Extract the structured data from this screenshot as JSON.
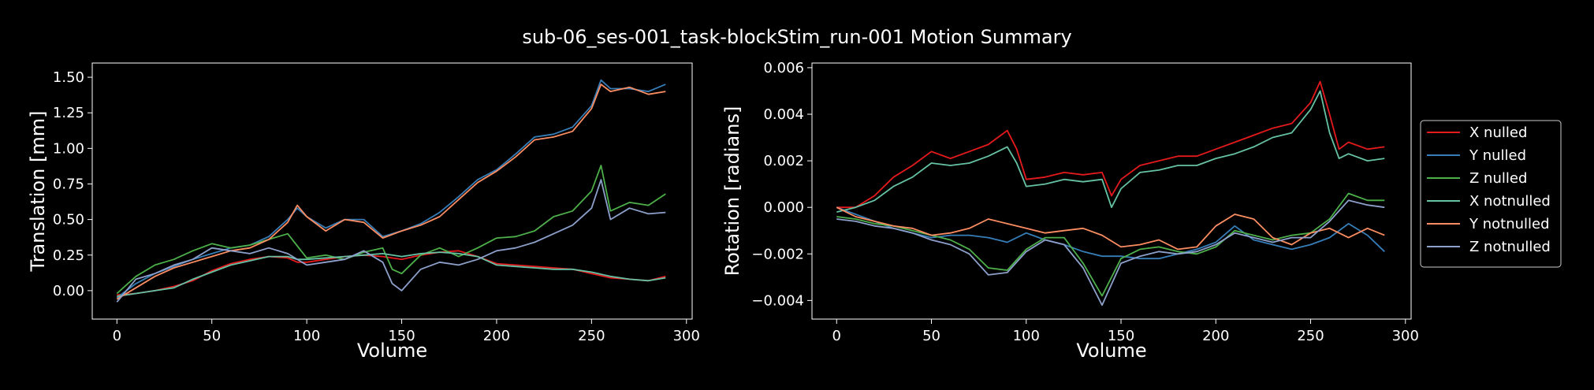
{
  "title": "sub-06_ses-001_task-blockStim_run-001 Motion Summary",
  "colors": {
    "background": "#000000",
    "foreground": "#ffffff",
    "X nulled": "#e41a1c",
    "Y nulled": "#377eb8",
    "Z nulled": "#4daf4a",
    "X notnulled": "#66c2a5",
    "Y notnulled": "#fc8d62",
    "Z notnulled": "#8da0cb"
  },
  "legend": {
    "placement": "right, outside plots",
    "entries": [
      "X nulled",
      "Y nulled",
      "Z nulled",
      "X notnulled",
      "Y notnulled",
      "Z notnulled"
    ]
  },
  "chart_data": [
    {
      "type": "line",
      "xlabel": "Volume",
      "ylabel": "Translation [mm]",
      "xlim": [
        -13,
        303
      ],
      "ylim": [
        -0.2,
        1.6
      ],
      "xticks": [
        0,
        50,
        100,
        150,
        200,
        250,
        300
      ],
      "xtick_labels": [
        "0",
        "50",
        "100",
        "150",
        "200",
        "250",
        "300"
      ],
      "yticks": [
        0.0,
        0.25,
        0.5,
        0.75,
        1.0,
        1.25,
        1.5
      ],
      "ytick_labels": [
        "0.00",
        "0.25",
        "0.50",
        "0.75",
        "1.00",
        "1.25",
        "1.50"
      ],
      "grid": false,
      "series": [
        {
          "name": "X nulled",
          "x": [
            0,
            10,
            20,
            30,
            40,
            50,
            60,
            70,
            80,
            90,
            95,
            100,
            110,
            120,
            130,
            140,
            150,
            160,
            170,
            180,
            190,
            200,
            210,
            220,
            230,
            240,
            250,
            260,
            270,
            280,
            289
          ],
          "y": [
            -0.03,
            -0.02,
            0.0,
            0.03,
            0.07,
            0.14,
            0.19,
            0.22,
            0.24,
            0.23,
            0.2,
            0.2,
            0.22,
            0.24,
            0.25,
            0.24,
            0.22,
            0.25,
            0.27,
            0.28,
            0.24,
            0.19,
            0.18,
            0.17,
            0.16,
            0.15,
            0.12,
            0.09,
            0.08,
            0.07,
            0.1
          ]
        },
        {
          "name": "Y nulled",
          "x": [
            0,
            10,
            20,
            30,
            40,
            50,
            60,
            70,
            80,
            90,
            95,
            100,
            110,
            120,
            130,
            140,
            150,
            160,
            170,
            180,
            190,
            200,
            210,
            220,
            230,
            240,
            250,
            255,
            260,
            270,
            280,
            289
          ],
          "y": [
            -0.05,
            0.05,
            0.12,
            0.17,
            0.22,
            0.26,
            0.3,
            0.32,
            0.38,
            0.5,
            0.58,
            0.52,
            0.44,
            0.5,
            0.5,
            0.38,
            0.42,
            0.47,
            0.55,
            0.66,
            0.78,
            0.85,
            0.96,
            1.08,
            1.1,
            1.15,
            1.3,
            1.48,
            1.42,
            1.42,
            1.4,
            1.45
          ]
        },
        {
          "name": "Z nulled",
          "x": [
            0,
            10,
            20,
            30,
            40,
            50,
            60,
            70,
            80,
            90,
            100,
            110,
            120,
            130,
            140,
            145,
            150,
            160,
            170,
            180,
            190,
            200,
            210,
            220,
            230,
            240,
            250,
            255,
            260,
            270,
            280,
            289
          ],
          "y": [
            -0.02,
            0.1,
            0.18,
            0.22,
            0.28,
            0.33,
            0.3,
            0.32,
            0.36,
            0.4,
            0.23,
            0.25,
            0.22,
            0.27,
            0.3,
            0.15,
            0.12,
            0.25,
            0.3,
            0.24,
            0.3,
            0.37,
            0.38,
            0.42,
            0.52,
            0.56,
            0.7,
            0.88,
            0.56,
            0.62,
            0.6,
            0.68
          ]
        },
        {
          "name": "X notnulled",
          "x": [
            0,
            10,
            20,
            30,
            40,
            50,
            60,
            70,
            80,
            90,
            95,
            100,
            110,
            120,
            130,
            140,
            150,
            160,
            170,
            180,
            190,
            200,
            210,
            220,
            230,
            240,
            250,
            260,
            270,
            280,
            289
          ],
          "y": [
            -0.04,
            -0.02,
            0.0,
            0.02,
            0.08,
            0.13,
            0.18,
            0.21,
            0.24,
            0.24,
            0.22,
            0.22,
            0.23,
            0.24,
            0.25,
            0.26,
            0.24,
            0.26,
            0.27,
            0.26,
            0.24,
            0.18,
            0.17,
            0.16,
            0.15,
            0.15,
            0.13,
            0.1,
            0.08,
            0.07,
            0.09
          ]
        },
        {
          "name": "Y notnulled",
          "x": [
            0,
            10,
            20,
            30,
            40,
            50,
            60,
            70,
            80,
            90,
            95,
            100,
            110,
            120,
            130,
            140,
            150,
            160,
            170,
            180,
            190,
            200,
            210,
            220,
            230,
            240,
            250,
            255,
            260,
            270,
            280,
            289
          ],
          "y": [
            -0.06,
            0.02,
            0.1,
            0.16,
            0.2,
            0.24,
            0.28,
            0.3,
            0.36,
            0.48,
            0.6,
            0.52,
            0.42,
            0.5,
            0.48,
            0.37,
            0.42,
            0.46,
            0.52,
            0.64,
            0.76,
            0.84,
            0.94,
            1.06,
            1.08,
            1.12,
            1.28,
            1.45,
            1.4,
            1.43,
            1.38,
            1.4
          ]
        },
        {
          "name": "Z notnulled",
          "x": [
            0,
            10,
            20,
            30,
            40,
            50,
            60,
            70,
            80,
            90,
            100,
            110,
            120,
            130,
            140,
            145,
            150,
            160,
            170,
            180,
            190,
            200,
            210,
            220,
            230,
            240,
            250,
            255,
            260,
            270,
            280,
            289
          ],
          "y": [
            -0.08,
            0.08,
            0.12,
            0.18,
            0.22,
            0.3,
            0.28,
            0.26,
            0.3,
            0.26,
            0.18,
            0.2,
            0.22,
            0.28,
            0.2,
            0.05,
            0.0,
            0.15,
            0.2,
            0.18,
            0.22,
            0.28,
            0.3,
            0.34,
            0.4,
            0.46,
            0.58,
            0.78,
            0.5,
            0.58,
            0.54,
            0.55
          ]
        }
      ]
    },
    {
      "type": "line",
      "xlabel": "Volume",
      "ylabel": "Rotation [radians]",
      "xlim": [
        -13,
        303
      ],
      "ylim": [
        -0.0048,
        0.0062
      ],
      "xticks": [
        0,
        50,
        100,
        150,
        200,
        250,
        300
      ],
      "xtick_labels": [
        "0",
        "50",
        "100",
        "150",
        "200",
        "250",
        "300"
      ],
      "yticks": [
        -0.004,
        -0.002,
        0.0,
        0.002,
        0.004,
        0.006
      ],
      "ytick_labels": [
        "−0.004",
        "−0.002",
        "0.000",
        "0.002",
        "0.004",
        "0.006"
      ],
      "grid": false,
      "series": [
        {
          "name": "X nulled",
          "x": [
            0,
            10,
            20,
            30,
            40,
            50,
            60,
            70,
            80,
            90,
            95,
            100,
            110,
            120,
            130,
            140,
            145,
            150,
            160,
            170,
            180,
            190,
            200,
            210,
            220,
            230,
            240,
            250,
            255,
            260,
            265,
            270,
            280,
            289
          ],
          "y": [
            0.0,
            0.0,
            0.0005,
            0.0013,
            0.0018,
            0.0024,
            0.0021,
            0.0024,
            0.0027,
            0.0033,
            0.0025,
            0.0012,
            0.0013,
            0.0015,
            0.0014,
            0.0015,
            0.0005,
            0.0012,
            0.0018,
            0.002,
            0.0022,
            0.0022,
            0.0025,
            0.0028,
            0.0031,
            0.0034,
            0.0036,
            0.0045,
            0.0054,
            0.004,
            0.0025,
            0.0028,
            0.0025,
            0.0026
          ]
        },
        {
          "name": "Y nulled",
          "x": [
            0,
            10,
            20,
            30,
            40,
            50,
            60,
            70,
            80,
            90,
            100,
            110,
            120,
            130,
            140,
            150,
            160,
            170,
            180,
            190,
            200,
            210,
            220,
            230,
            240,
            250,
            260,
            270,
            280,
            289
          ],
          "y": [
            0.0,
            -0.0003,
            -0.0006,
            -0.0009,
            -0.0011,
            -0.0013,
            -0.0012,
            -0.0012,
            -0.0013,
            -0.0015,
            -0.0011,
            -0.0014,
            -0.0016,
            -0.0019,
            -0.0021,
            -0.0021,
            -0.0022,
            -0.0022,
            -0.002,
            -0.0018,
            -0.0015,
            -0.0008,
            -0.0014,
            -0.0016,
            -0.0018,
            -0.0016,
            -0.0013,
            -0.0007,
            -0.0012,
            -0.0019
          ]
        },
        {
          "name": "Z nulled",
          "x": [
            0,
            10,
            20,
            30,
            40,
            50,
            60,
            70,
            80,
            90,
            100,
            110,
            120,
            130,
            140,
            150,
            160,
            170,
            180,
            190,
            200,
            210,
            220,
            230,
            240,
            250,
            260,
            270,
            280,
            289
          ],
          "y": [
            -0.0004,
            -0.0005,
            -0.0007,
            -0.0008,
            -0.001,
            -0.0012,
            -0.0014,
            -0.0018,
            -0.0026,
            -0.0027,
            -0.0018,
            -0.0013,
            -0.0013,
            -0.0024,
            -0.0038,
            -0.0022,
            -0.0018,
            -0.0017,
            -0.0019,
            -0.002,
            -0.0017,
            -0.001,
            -0.0012,
            -0.0014,
            -0.0012,
            -0.0011,
            -0.0005,
            0.0006,
            0.0003,
            0.0003
          ]
        },
        {
          "name": "X notnulled",
          "x": [
            0,
            10,
            20,
            30,
            40,
            50,
            60,
            70,
            80,
            90,
            95,
            100,
            110,
            120,
            130,
            140,
            145,
            150,
            160,
            170,
            180,
            190,
            200,
            210,
            220,
            230,
            240,
            250,
            255,
            260,
            265,
            270,
            280,
            289
          ],
          "y": [
            -0.0002,
            0.0,
            0.0003,
            0.0009,
            0.0013,
            0.0019,
            0.0018,
            0.0019,
            0.0022,
            0.0026,
            0.0019,
            0.0009,
            0.001,
            0.0012,
            0.0011,
            0.0012,
            0.0,
            0.0008,
            0.0015,
            0.0016,
            0.0018,
            0.0018,
            0.0021,
            0.0023,
            0.0026,
            0.003,
            0.0032,
            0.0042,
            0.005,
            0.0032,
            0.0021,
            0.0023,
            0.002,
            0.0021
          ]
        },
        {
          "name": "Y notnulled",
          "x": [
            0,
            10,
            20,
            30,
            40,
            50,
            60,
            70,
            80,
            90,
            100,
            110,
            120,
            130,
            140,
            150,
            160,
            170,
            180,
            190,
            200,
            210,
            220,
            230,
            240,
            250,
            260,
            270,
            280,
            289
          ],
          "y": [
            0.0,
            -0.0004,
            -0.0006,
            -0.0008,
            -0.0009,
            -0.0012,
            -0.0011,
            -0.0009,
            -0.0005,
            -0.0007,
            -0.0009,
            -0.0011,
            -0.001,
            -0.0009,
            -0.0012,
            -0.0017,
            -0.0016,
            -0.0014,
            -0.0018,
            -0.0017,
            -0.0008,
            -0.0003,
            -0.0005,
            -0.0013,
            -0.0016,
            -0.0011,
            -0.0009,
            -0.0013,
            -0.0009,
            -0.0012
          ]
        },
        {
          "name": "Z notnulled",
          "x": [
            0,
            10,
            20,
            30,
            40,
            50,
            60,
            70,
            80,
            90,
            100,
            110,
            120,
            130,
            140,
            150,
            160,
            170,
            180,
            190,
            200,
            210,
            220,
            230,
            240,
            250,
            260,
            270,
            280,
            289
          ],
          "y": [
            -0.0005,
            -0.0006,
            -0.0008,
            -0.0009,
            -0.0011,
            -0.0014,
            -0.0016,
            -0.002,
            -0.0029,
            -0.0028,
            -0.0019,
            -0.0014,
            -0.0016,
            -0.0026,
            -0.0042,
            -0.0024,
            -0.0021,
            -0.0019,
            -0.002,
            -0.0019,
            -0.0016,
            -0.0011,
            -0.0013,
            -0.0015,
            -0.0013,
            -0.0013,
            -0.0006,
            0.0003,
            0.0001,
            0.0
          ]
        }
      ]
    }
  ]
}
